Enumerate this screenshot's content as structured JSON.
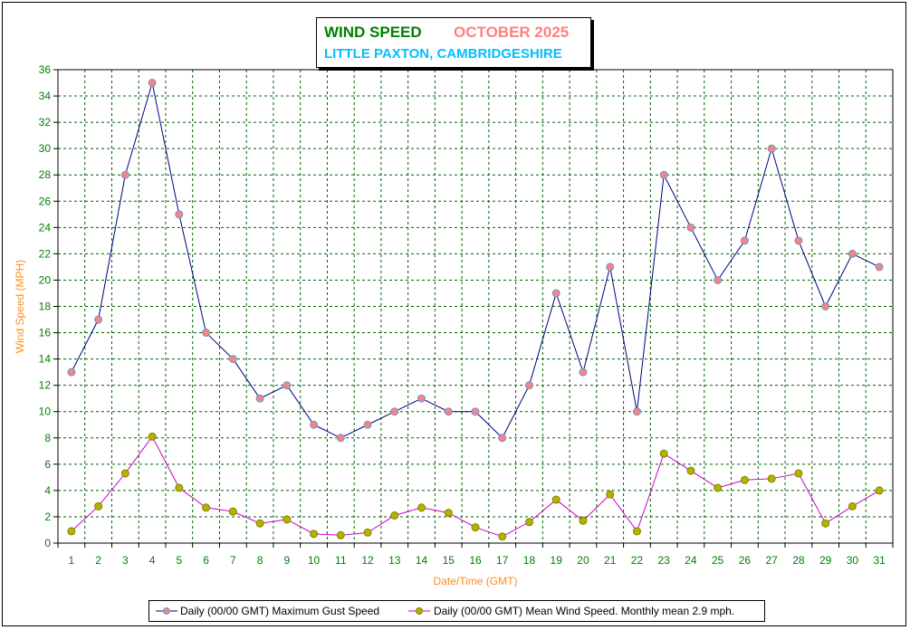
{
  "chart_data": {
    "type": "line",
    "title": "WIND SPEED",
    "title_period": "OCTOBER 2025",
    "subtitle": "LITTLE PAXTON, CAMBRIDGESHIRE",
    "xlabel": "Date/Time (GMT)",
    "ylabel": "Wind Speed (MPH)",
    "ylim": [
      0,
      36
    ],
    "grid": true,
    "x": [
      1,
      2,
      3,
      4,
      5,
      6,
      7,
      8,
      9,
      10,
      11,
      12,
      13,
      14,
      15,
      16,
      17,
      18,
      19,
      20,
      21,
      22,
      23,
      24,
      25,
      26,
      27,
      28,
      29,
      30,
      31
    ],
    "y_ticks": [
      0,
      2,
      4,
      6,
      8,
      10,
      12,
      14,
      16,
      18,
      20,
      22,
      24,
      26,
      28,
      30,
      32,
      34,
      36
    ],
    "legend_position": "bottom",
    "series": [
      {
        "name": "Daily (00/00 GMT) Maximum Gust Speed",
        "line_color": "#000080",
        "marker_color": "#ff8080",
        "values": [
          13,
          17,
          28,
          35,
          25,
          16,
          14,
          11,
          12,
          9,
          8,
          9,
          10,
          11,
          10,
          10,
          8,
          12,
          19,
          13,
          21,
          10,
          28,
          24,
          20,
          23,
          30,
          23,
          18,
          22,
          21
        ]
      },
      {
        "name": "Daily (00/00 GMT) Mean Wind Speed. Monthly mean 2.9 mph.",
        "line_color": "#cc00cc",
        "marker_color": "#b3b300",
        "values": [
          0.9,
          2.8,
          5.3,
          8.1,
          4.2,
          2.7,
          2.4,
          1.5,
          1.8,
          0.7,
          0.6,
          0.8,
          2.1,
          2.7,
          2.3,
          1.2,
          0.5,
          1.6,
          3.3,
          1.7,
          3.7,
          0.9,
          6.8,
          5.5,
          4.2,
          4.8,
          4.9,
          5.3,
          1.5,
          2.8,
          4.0
        ]
      }
    ]
  }
}
